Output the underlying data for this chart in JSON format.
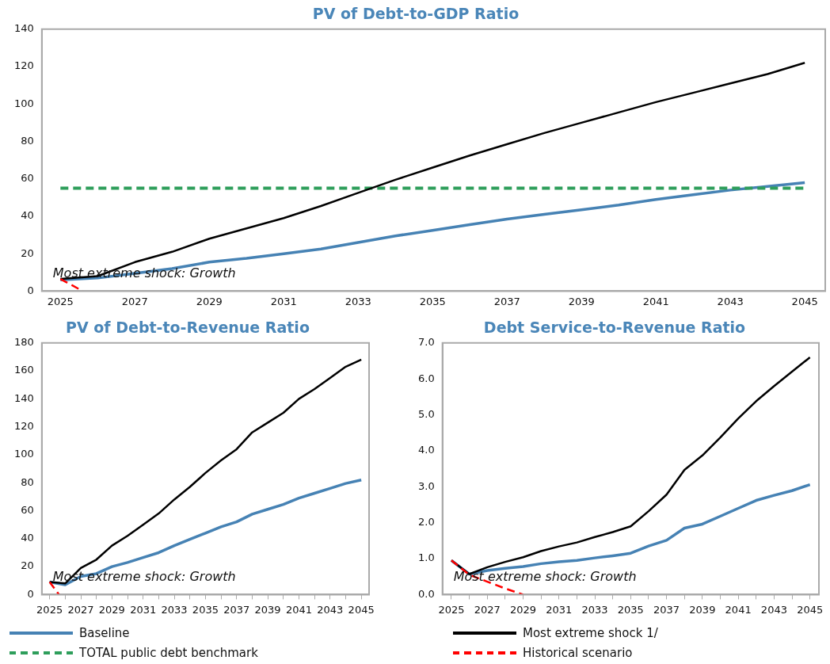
{
  "chart_data": [
    {
      "type": "line",
      "title": "PV of Debt-to-GDP Ratio",
      "x": [
        2025,
        2026,
        2027,
        2028,
        2029,
        2030,
        2031,
        2032,
        2033,
        2034,
        2035,
        2036,
        2037,
        2038,
        2039,
        2040,
        2041,
        2042,
        2043,
        2044,
        2045
      ],
      "xlim": [
        2024.5,
        2045.55
      ],
      "xticks": [
        2025,
        2027,
        2029,
        2031,
        2033,
        2035,
        2037,
        2039,
        2041,
        2043,
        2045
      ],
      "ylim": [
        0,
        140
      ],
      "yticks": [
        0,
        20,
        40,
        60,
        80,
        100,
        120,
        140
      ],
      "grid": false,
      "legend": "bottom",
      "marker": "none",
      "annotations": [
        "Most extreme shock: Growth"
      ],
      "series": [
        {
          "name": "Baseline",
          "color": "#4682b4",
          "values": [
            6,
            7,
            9.5,
            12,
            15.5,
            17.5,
            20,
            22.5,
            26,
            29.5,
            32.5,
            35.5,
            38.5,
            41,
            43.5,
            46,
            49,
            51.5,
            54,
            56,
            58
          ]
        },
        {
          "name": "TOTAL public debt benchmark",
          "color": "#2e9e5b",
          "line_style": "dashed",
          "values": [
            55,
            55,
            55,
            55,
            55,
            55,
            55,
            55,
            55,
            55,
            55,
            55,
            55,
            55,
            55,
            55,
            55,
            55,
            55,
            55,
            55
          ]
        },
        {
          "name": "Most extreme shock 1/",
          "color": "#000000",
          "values": [
            6.5,
            8,
            15.5,
            21,
            28,
            33.5,
            39,
            45.5,
            52.5,
            59.5,
            66,
            72.5,
            78.5,
            84.5,
            90,
            95.5,
            101,
            106,
            111,
            116,
            122
          ]
        },
        {
          "name": "Historical scenario",
          "color": "#ff0000",
          "line_style": "dashed",
          "x": [
            2025,
            2025.6
          ],
          "values": [
            6.5,
            0
          ]
        }
      ]
    },
    {
      "type": "line",
      "title": "PV of Debt-to-Revenue Ratio",
      "x": [
        2025,
        2026,
        2027,
        2028,
        2029,
        2030,
        2031,
        2032,
        2033,
        2034,
        2035,
        2036,
        2037,
        2038,
        2039,
        2040,
        2041,
        2042,
        2043,
        2044,
        2045
      ],
      "xlim": [
        2024.5,
        2045.5
      ],
      "xticks": [
        2025,
        {
          "value": 2026,
          "label": null
        },
        2027,
        {
          "value": 2028,
          "label": null
        },
        2029,
        {
          "value": 2030,
          "label": null
        },
        2031,
        {
          "value": 2032,
          "label": null
        },
        2033,
        {
          "value": 2034,
          "label": null
        },
        2035,
        {
          "value": 2036,
          "label": null
        },
        2037,
        {
          "value": 2038,
          "label": null
        },
        2039,
        {
          "value": 2040,
          "label": null
        },
        2041,
        {
          "value": 2042,
          "label": null
        },
        2043,
        {
          "value": 2044,
          "label": null
        },
        2045
      ],
      "ylim": [
        0,
        180
      ],
      "yticks": [
        0,
        20,
        40,
        60,
        80,
        100,
        120,
        140,
        160,
        180
      ],
      "grid": false,
      "marker": "none",
      "annotations": [
        "Most extreme shock: Growth"
      ],
      "series": [
        {
          "color": "#4682b4",
          "values": [
            9,
            7,
            13,
            15,
            20,
            23,
            26.5,
            30,
            35,
            39.5,
            44,
            48.5,
            52,
            57.5,
            61,
            64.5,
            69,
            72.5,
            76,
            79.5,
            82
          ]
        },
        {
          "color": "#000000",
          "values": [
            9,
            8,
            19,
            25,
            35,
            42,
            50,
            58,
            68,
            77,
            87,
            96,
            104,
            116,
            123,
            130,
            140,
            147,
            155,
            163,
            168
          ]
        },
        {
          "color": "#ff0000",
          "line_style": "dashed",
          "x": [
            2025,
            2025.6
          ],
          "values": [
            9,
            0
          ]
        }
      ]
    },
    {
      "type": "line",
      "title": "Debt Service-to-Revenue Ratio",
      "x": [
        2025,
        2026,
        2027,
        2028,
        2029,
        2030,
        2031,
        2032,
        2033,
        2034,
        2035,
        2036,
        2037,
        2038,
        2039,
        2040,
        2041,
        2042,
        2043,
        2044,
        2045
      ],
      "xlim": [
        2024.5,
        2045.5
      ],
      "xticks": [
        2025,
        {
          "value": 2026,
          "label": null
        },
        2027,
        {
          "value": 2028,
          "label": null
        },
        2029,
        {
          "value": 2030,
          "label": null
        },
        2031,
        {
          "value": 2032,
          "label": null
        },
        2033,
        {
          "value": 2034,
          "label": null
        },
        2035,
        {
          "value": 2036,
          "label": null
        },
        2037,
        {
          "value": 2038,
          "label": null
        },
        2039,
        {
          "value": 2040,
          "label": null
        },
        2041,
        {
          "value": 2042,
          "label": null
        },
        2043,
        {
          "value": 2044,
          "label": null
        },
        2045
      ],
      "ylim": [
        0,
        7
      ],
      "yticks": [
        {
          "value": 0,
          "label": "0.0"
        },
        {
          "value": 1,
          "label": "1.0"
        },
        {
          "value": 2,
          "label": "2.0"
        },
        {
          "value": 3,
          "label": "3.0"
        },
        {
          "value": 4,
          "label": "4.0"
        },
        {
          "value": 5,
          "label": "5.0"
        },
        {
          "value": 6,
          "label": "6.0"
        },
        {
          "value": 7,
          "label": "7.0"
        }
      ],
      "grid": false,
      "marker": "none",
      "annotations": [
        "Most extreme shock: Growth"
      ],
      "series": [
        {
          "color": "#4682b4",
          "values": [
            0.95,
            0.57,
            0.67,
            0.73,
            0.78,
            0.86,
            0.91,
            0.95,
            1.02,
            1.08,
            1.15,
            1.35,
            1.51,
            1.85,
            1.96,
            2.18,
            2.4,
            2.62,
            2.76,
            2.89,
            3.06
          ]
        },
        {
          "color": "#000000",
          "values": [
            0.95,
            0.57,
            0.76,
            0.91,
            1.04,
            1.21,
            1.34,
            1.45,
            1.6,
            1.74,
            1.9,
            2.32,
            2.78,
            3.47,
            3.87,
            4.37,
            4.9,
            5.38,
            5.8,
            6.2,
            6.6
          ]
        },
        {
          "color": "#ff0000",
          "line_style": "dashed",
          "x": [
            2025,
            2026,
            2027,
            2028,
            2029
          ],
          "values": [
            0.95,
            0.55,
            0.36,
            0.17,
            0
          ]
        }
      ]
    }
  ]
}
